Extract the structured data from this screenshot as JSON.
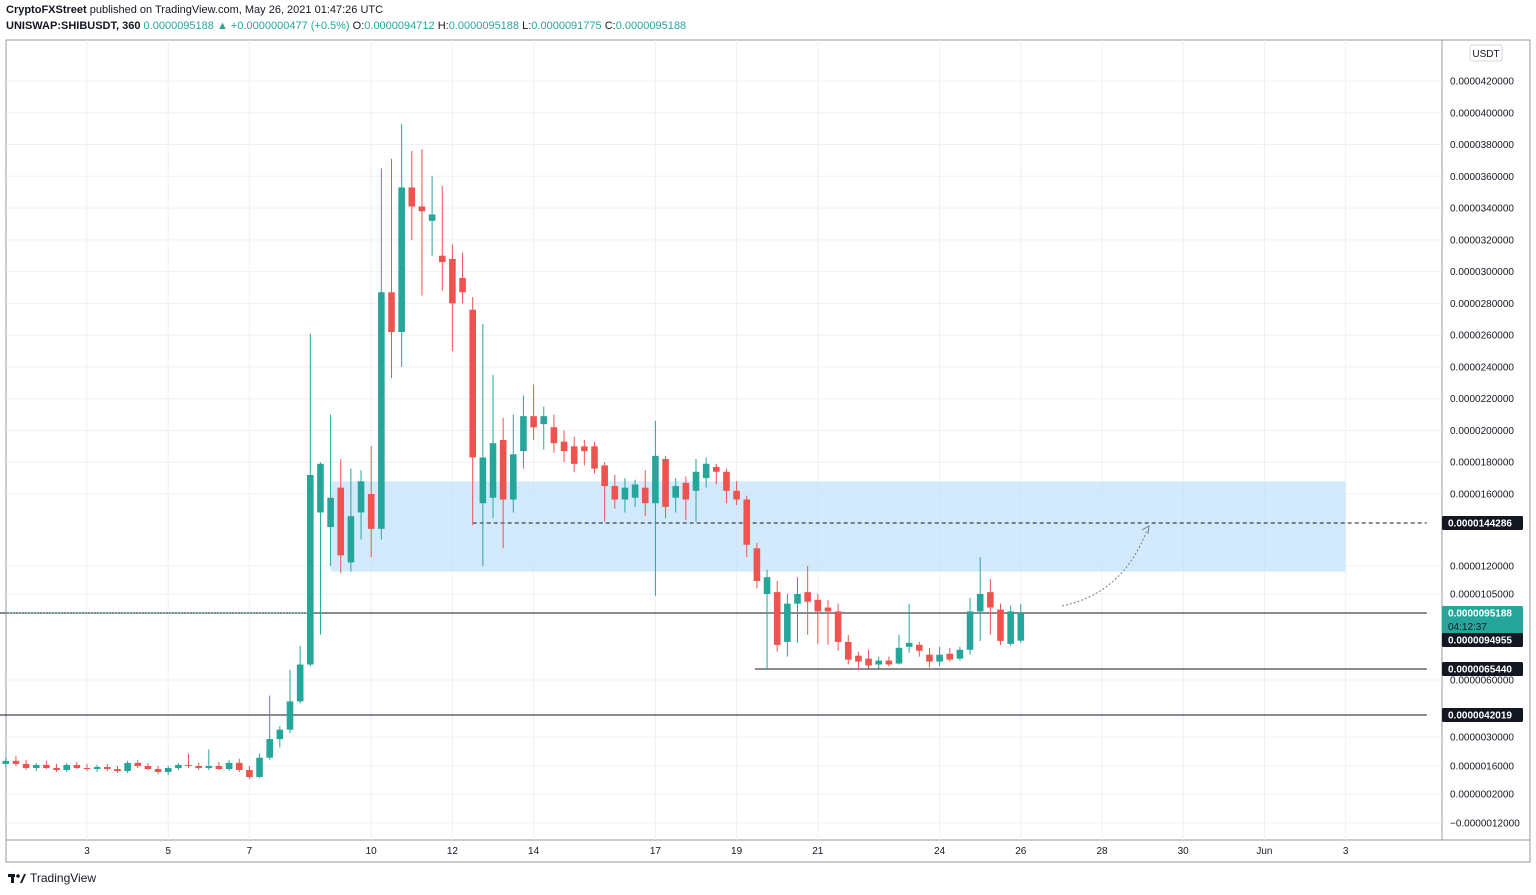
{
  "header": {
    "author": "CryptoFXStreet",
    "published": "published on TradingView.com, May 26, 2021 01:47:26 UTC",
    "symbol": "UNISWAP:SHIBUSDT, 360",
    "last": "0.0000095188",
    "change": "+0.0000000477 (+0.5%)",
    "o_label": "O:",
    "o": "0.0000094712",
    "h_label": "H:",
    "h": "0.0000095188",
    "l_label": "L:",
    "l": "0.0000091775",
    "c_label": "C:",
    "c": "0.0000095188"
  },
  "footer": {
    "brand": "TradingView"
  },
  "colors": {
    "up": "#26a69a",
    "down": "#ef5350",
    "zone": "#bbdefb",
    "grid": "#eef0f3"
  },
  "chart_data": {
    "type": "candlestick",
    "currency": "USDT",
    "y_ticks": [
      {
        "v": 4.2e-05,
        "label": "0.0000420000"
      },
      {
        "v": 4e-05,
        "label": "0.0000400000"
      },
      {
        "v": 3.8e-05,
        "label": "0.0000380000"
      },
      {
        "v": 3.6e-05,
        "label": "0.0000360000"
      },
      {
        "v": 3.4e-05,
        "label": "0.0000340000"
      },
      {
        "v": 3.2e-05,
        "label": "0.0000320000"
      },
      {
        "v": 3e-05,
        "label": "0.0000300000"
      },
      {
        "v": 2.8e-05,
        "label": "0.0000280000"
      },
      {
        "v": 2.6e-05,
        "label": "0.0000260000"
      },
      {
        "v": 2.4e-05,
        "label": "0.0000240000"
      },
      {
        "v": 2.2e-05,
        "label": "0.0000220000"
      },
      {
        "v": 2e-05,
        "label": "0.0000200000"
      },
      {
        "v": 1.8e-05,
        "label": "0.0000180000"
      },
      {
        "v": 1.6e-05,
        "label": "0.0000160000"
      },
      {
        "v": 1.2e-05,
        "label": "0.0000120000"
      },
      {
        "v": 1.05e-05,
        "label": "0.0000105000"
      },
      {
        "v": 6e-06,
        "label": "0.0000060000"
      },
      {
        "v": 3e-06,
        "label": "0.0000030000"
      },
      {
        "v": 1.6e-06,
        "label": "0.0000016000"
      },
      {
        "v": 2e-07,
        "label": "0.0000002000"
      },
      {
        "v": -1.2e-06,
        "label": "−0.0000012000"
      }
    ],
    "x_ticks": [
      {
        "day": 3,
        "label": "3"
      },
      {
        "day": 5,
        "label": "5"
      },
      {
        "day": 7,
        "label": "7"
      },
      {
        "day": 10,
        "label": "10"
      },
      {
        "day": 12,
        "label": "12"
      },
      {
        "day": 14,
        "label": "14"
      },
      {
        "day": 17,
        "label": "17"
      },
      {
        "day": 19,
        "label": "19"
      },
      {
        "day": 21,
        "label": "21"
      },
      {
        "day": 24,
        "label": "24"
      },
      {
        "day": 26,
        "label": "26"
      },
      {
        "day": 28,
        "label": "28"
      },
      {
        "day": 30,
        "label": "30"
      },
      {
        "day": 32,
        "label": "Jun"
      },
      {
        "day": 34,
        "label": "3"
      }
    ],
    "price_tags": [
      {
        "v": 1.44286e-05,
        "label": "0.0000144286",
        "bg": "#131722"
      },
      {
        "v": 9.5188e-06,
        "label": "0.0000095188",
        "bg": "#26a69a",
        "sub": "04:12:37"
      },
      {
        "v": 9.4955e-06,
        "label": "0.0000094955",
        "bg": "#131722"
      },
      {
        "v": 6.544e-06,
        "label": "0.0000065440",
        "bg": "#131722"
      },
      {
        "v": 4.2019e-06,
        "label": "0.0000042019",
        "bg": "#131722"
      }
    ],
    "zone": {
      "top": 1.68e-05,
      "bottom": 1.17e-05,
      "day_start": 9.0,
      "day_end": 34.0
    },
    "levels": [
      {
        "v": 1.44286e-05,
        "day_start": 12.5,
        "day_end": 36.0,
        "style": "dashed"
      },
      {
        "v": 9.5188e-06,
        "day_start": 0.8,
        "day_end": 36.0,
        "style": "solid"
      },
      {
        "v": 6.544e-06,
        "day_start": 19.45,
        "day_end": 36.0,
        "style": "solid"
      },
      {
        "v": 4.2019e-06,
        "day_start": 0.8,
        "day_end": 36.0,
        "style": "solid"
      }
    ],
    "candles": [
      {
        "d": 1.0,
        "o": 1.7e-06,
        "h": 2e-06,
        "l": 1.55e-06,
        "c": 1.85e-06
      },
      {
        "d": 1.25,
        "o": 1.85e-06,
        "h": 2.1e-06,
        "l": 1.6e-06,
        "c": 1.7e-06
      },
      {
        "d": 1.5,
        "o": 1.7e-06,
        "h": 1.9e-06,
        "l": 1.4e-06,
        "c": 1.5e-06
      },
      {
        "d": 1.75,
        "o": 1.5e-06,
        "h": 1.75e-06,
        "l": 1.35e-06,
        "c": 1.65e-06
      },
      {
        "d": 2.0,
        "o": 1.65e-06,
        "h": 1.85e-06,
        "l": 1.45e-06,
        "c": 1.5e-06
      },
      {
        "d": 2.25,
        "o": 1.5e-06,
        "h": 1.7e-06,
        "l": 1.3e-06,
        "c": 1.4e-06
      },
      {
        "d": 2.5,
        "o": 1.4e-06,
        "h": 1.75e-06,
        "l": 1.3e-06,
        "c": 1.65e-06
      },
      {
        "d": 2.75,
        "o": 1.65e-06,
        "h": 1.8e-06,
        "l": 1.45e-06,
        "c": 1.5e-06
      },
      {
        "d": 3.0,
        "o": 1.5e-06,
        "h": 1.7e-06,
        "l": 1.35e-06,
        "c": 1.45e-06
      },
      {
        "d": 3.25,
        "o": 1.45e-06,
        "h": 1.65e-06,
        "l": 1.3e-06,
        "c": 1.55e-06
      },
      {
        "d": 3.5,
        "o": 1.55e-06,
        "h": 1.7e-06,
        "l": 1.35e-06,
        "c": 1.45e-06
      },
      {
        "d": 3.75,
        "o": 1.45e-06,
        "h": 1.6e-06,
        "l": 1.25e-06,
        "c": 1.35e-06
      },
      {
        "d": 4.0,
        "o": 1.35e-06,
        "h": 1.85e-06,
        "l": 1.25e-06,
        "c": 1.75e-06
      },
      {
        "d": 4.25,
        "o": 1.75e-06,
        "h": 1.9e-06,
        "l": 1.5e-06,
        "c": 1.6e-06
      },
      {
        "d": 4.5,
        "o": 1.6e-06,
        "h": 1.75e-06,
        "l": 1.4e-06,
        "c": 1.45e-06
      },
      {
        "d": 4.75,
        "o": 1.45e-06,
        "h": 1.6e-06,
        "l": 1.2e-06,
        "c": 1.3e-06
      },
      {
        "d": 5.0,
        "o": 1.3e-06,
        "h": 1.6e-06,
        "l": 1.15e-06,
        "c": 1.5e-06
      },
      {
        "d": 5.25,
        "o": 1.5e-06,
        "h": 1.75e-06,
        "l": 1.4e-06,
        "c": 1.65e-06
      },
      {
        "d": 5.5,
        "o": 1.65e-06,
        "h": 2.2e-06,
        "l": 1.5e-06,
        "c": 1.6e-06
      },
      {
        "d": 5.75,
        "o": 1.6e-06,
        "h": 1.75e-06,
        "l": 1.4e-06,
        "c": 1.5e-06
      },
      {
        "d": 6.0,
        "o": 1.5e-06,
        "h": 2.4e-06,
        "l": 1.4e-06,
        "c": 1.6e-06
      },
      {
        "d": 6.25,
        "o": 1.6e-06,
        "h": 1.8e-06,
        "l": 1.4e-06,
        "c": 1.45e-06
      },
      {
        "d": 6.5,
        "o": 1.45e-06,
        "h": 1.9e-06,
        "l": 1.35e-06,
        "c": 1.75e-06
      },
      {
        "d": 6.75,
        "o": 1.75e-06,
        "h": 1.95e-06,
        "l": 1.3e-06,
        "c": 1.4e-06
      },
      {
        "d": 7.0,
        "o": 1.4e-06,
        "h": 1.6e-06,
        "l": 9.5e-07,
        "c": 1.05e-06
      },
      {
        "d": 7.25,
        "o": 1.05e-06,
        "h": 2.2e-06,
        "l": 1e-06,
        "c": 2e-06
      },
      {
        "d": 7.5,
        "o": 2e-06,
        "h": 5.2e-06,
        "l": 1.9e-06,
        "c": 2.9e-06
      },
      {
        "d": 7.75,
        "o": 2.9e-06,
        "h": 3.6e-06,
        "l": 2.5e-06,
        "c": 3.4e-06
      },
      {
        "d": 8.0,
        "o": 3.4e-06,
        "h": 6.5e-06,
        "l": 3.2e-06,
        "c": 4.9e-06
      },
      {
        "d": 8.25,
        "o": 4.9e-06,
        "h": 8.9e-06,
        "l": 4.8e-06,
        "c": 7e-06
      },
      {
        "d": 8.5,
        "o": 7e-06,
        "h": 2.61e-05,
        "l": 6.8e-06,
        "c": 1.72e-05
      },
      {
        "d": 8.75,
        "o": 1.5e-05,
        "h": 1.8e-05,
        "l": 9.5e-06,
        "c": 1.79e-05
      },
      {
        "d": 9.0,
        "o": 1.42e-05,
        "h": 2.1e-05,
        "l": 1.2e-05,
        "c": 1.58e-05
      },
      {
        "d": 9.25,
        "o": 1.64e-05,
        "h": 1.82e-05,
        "l": 1.16e-05,
        "c": 1.26e-05
      },
      {
        "d": 9.5,
        "o": 1.22e-05,
        "h": 1.76e-05,
        "l": 1.17e-05,
        "c": 1.48e-05
      },
      {
        "d": 9.75,
        "o": 1.5e-05,
        "h": 1.75e-05,
        "l": 1.35e-05,
        "c": 1.68e-05
      },
      {
        "d": 10.0,
        "o": 1.6e-05,
        "h": 1.9e-05,
        "l": 1.25e-05,
        "c": 1.41e-05
      },
      {
        "d": 10.25,
        "o": 1.41e-05,
        "h": 3.65e-05,
        "l": 1.35e-05,
        "c": 2.87e-05
      },
      {
        "d": 10.5,
        "o": 2.87e-05,
        "h": 3.71e-05,
        "l": 2.33e-05,
        "c": 2.62e-05
      },
      {
        "d": 10.75,
        "o": 2.62e-05,
        "h": 3.93e-05,
        "l": 2.4e-05,
        "c": 3.53e-05
      },
      {
        "d": 11.0,
        "o": 3.53e-05,
        "h": 3.76e-05,
        "l": 3.2e-05,
        "c": 3.41e-05
      },
      {
        "d": 11.25,
        "o": 3.41e-05,
        "h": 3.77e-05,
        "l": 2.85e-05,
        "c": 3.38e-05
      },
      {
        "d": 11.5,
        "o": 3.32e-05,
        "h": 3.6e-05,
        "l": 3.1e-05,
        "c": 3.36e-05
      },
      {
        "d": 11.75,
        "o": 3.1e-05,
        "h": 3.54e-05,
        "l": 2.88e-05,
        "c": 3.06e-05
      },
      {
        "d": 12.0,
        "o": 3.08e-05,
        "h": 3.17e-05,
        "l": 2.5e-05,
        "c": 2.8e-05
      },
      {
        "d": 12.25,
        "o": 2.96e-05,
        "h": 3.12e-05,
        "l": 2.8e-05,
        "c": 2.87e-05
      },
      {
        "d": 12.5,
        "o": 2.76e-05,
        "h": 2.84e-05,
        "l": 1.43e-05,
        "c": 1.83e-05
      },
      {
        "d": 12.75,
        "o": 1.55e-05,
        "h": 2.67e-05,
        "l": 1.2e-05,
        "c": 1.83e-05
      },
      {
        "d": 13.0,
        "o": 1.58e-05,
        "h": 2.35e-05,
        "l": 1.47e-05,
        "c": 1.92e-05
      },
      {
        "d": 13.25,
        "o": 1.94e-05,
        "h": 2.08e-05,
        "l": 1.3e-05,
        "c": 1.57e-05
      },
      {
        "d": 13.5,
        "o": 1.57e-05,
        "h": 2.1e-05,
        "l": 1.5e-05,
        "c": 1.85e-05
      },
      {
        "d": 13.75,
        "o": 1.87e-05,
        "h": 2.22e-05,
        "l": 1.76e-05,
        "c": 2.09e-05
      },
      {
        "d": 14.0,
        "o": 2.09e-05,
        "h": 2.29e-05,
        "l": 1.94e-05,
        "c": 2.02e-05
      },
      {
        "d": 14.25,
        "o": 2.04e-05,
        "h": 2.15e-05,
        "l": 1.88e-05,
        "c": 2.09e-05
      },
      {
        "d": 14.5,
        "o": 2.02e-05,
        "h": 2.1e-05,
        "l": 1.86e-05,
        "c": 1.92e-05
      },
      {
        "d": 14.75,
        "o": 1.93e-05,
        "h": 2e-05,
        "l": 1.8e-05,
        "c": 1.87e-05
      },
      {
        "d": 15.0,
        "o": 1.9e-05,
        "h": 1.96e-05,
        "l": 1.74e-05,
        "c": 1.79e-05
      },
      {
        "d": 15.25,
        "o": 1.9e-05,
        "h": 1.94e-05,
        "l": 1.78e-05,
        "c": 1.87e-05
      },
      {
        "d": 15.5,
        "o": 1.9e-05,
        "h": 1.93e-05,
        "l": 1.73e-05,
        "c": 1.76e-05
      },
      {
        "d": 15.75,
        "o": 1.78e-05,
        "h": 1.8e-05,
        "l": 1.45e-05,
        "c": 1.65e-05
      },
      {
        "d": 16.0,
        "o": 1.65e-05,
        "h": 1.72e-05,
        "l": 1.52e-05,
        "c": 1.57e-05
      },
      {
        "d": 16.25,
        "o": 1.57e-05,
        "h": 1.7e-05,
        "l": 1.5e-05,
        "c": 1.64e-05
      },
      {
        "d": 16.5,
        "o": 1.58e-05,
        "h": 1.69e-05,
        "l": 1.53e-05,
        "c": 1.66e-05
      },
      {
        "d": 16.75,
        "o": 1.64e-05,
        "h": 1.75e-05,
        "l": 1.48e-05,
        "c": 1.55e-05
      },
      {
        "d": 17.0,
        "o": 1.55e-05,
        "h": 2.06e-05,
        "l": 1.04e-05,
        "c": 1.84e-05
      },
      {
        "d": 17.25,
        "o": 1.82e-05,
        "h": 1.84e-05,
        "l": 1.47e-05,
        "c": 1.53e-05
      },
      {
        "d": 17.5,
        "o": 1.58e-05,
        "h": 1.7e-05,
        "l": 1.5e-05,
        "c": 1.65e-05
      },
      {
        "d": 17.75,
        "o": 1.67e-05,
        "h": 1.71e-05,
        "l": 1.46e-05,
        "c": 1.57e-05
      },
      {
        "d": 18.0,
        "o": 1.62e-05,
        "h": 1.82e-05,
        "l": 1.45e-05,
        "c": 1.74e-05
      },
      {
        "d": 18.25,
        "o": 1.7e-05,
        "h": 1.83e-05,
        "l": 1.64e-05,
        "c": 1.79e-05
      },
      {
        "d": 18.5,
        "o": 1.77e-05,
        "h": 1.79e-05,
        "l": 1.66e-05,
        "c": 1.74e-05
      },
      {
        "d": 18.75,
        "o": 1.74e-05,
        "h": 1.76e-05,
        "l": 1.55e-05,
        "c": 1.62e-05
      },
      {
        "d": 19.0,
        "o": 1.62e-05,
        "h": 1.68e-05,
        "l": 1.54e-05,
        "c": 1.57e-05
      },
      {
        "d": 19.25,
        "o": 1.57e-05,
        "h": 1.59e-05,
        "l": 1.25e-05,
        "c": 1.32e-05
      },
      {
        "d": 19.5,
        "o": 1.3e-05,
        "h": 1.33e-05,
        "l": 1.08e-05,
        "c": 1.12e-05
      },
      {
        "d": 19.75,
        "o": 1.05e-05,
        "h": 1.18e-05,
        "l": 6.5e-06,
        "c": 1.14e-05
      },
      {
        "d": 20.0,
        "o": 1.06e-05,
        "h": 1.12e-05,
        "l": 8.3e-06,
        "c": 9e-06
      },
      {
        "d": 20.25,
        "o": 9.3e-06,
        "h": 1.05e-05,
        "l": 7.8e-06,
        "c": 1e-05
      },
      {
        "d": 20.5,
        "o": 1e-05,
        "h": 1.14e-05,
        "l": 9.2e-06,
        "c": 1.05e-05
      },
      {
        "d": 20.75,
        "o": 1.06e-05,
        "h": 1.2e-05,
        "l": 9.5e-06,
        "c": 1.01e-05
      },
      {
        "d": 21.0,
        "o": 1.02e-05,
        "h": 1.05e-05,
        "l": 9.1e-06,
        "c": 9.6e-06
      },
      {
        "d": 21.25,
        "o": 9.8e-06,
        "h": 1.02e-05,
        "l": 9e-06,
        "c": 9.6e-06
      },
      {
        "d": 21.5,
        "o": 9.6e-06,
        "h": 1e-05,
        "l": 8.4e-06,
        "c": 9.3e-06
      },
      {
        "d": 21.75,
        "o": 9.3e-06,
        "h": 9.5e-06,
        "l": 7e-06,
        "c": 7.5e-06
      },
      {
        "d": 22.0,
        "o": 7.9e-06,
        "h": 8.3e-06,
        "l": 6.5e-06,
        "c": 7.3e-06
      },
      {
        "d": 22.25,
        "o": 7.6e-06,
        "h": 8.5e-06,
        "l": 6.6e-06,
        "c": 6.9e-06
      },
      {
        "d": 22.5,
        "o": 7e-06,
        "h": 7.8e-06,
        "l": 6.6e-06,
        "c": 7.4e-06
      },
      {
        "d": 22.75,
        "o": 7.4e-06,
        "h": 7.8e-06,
        "l": 6.8e-06,
        "c": 7e-06
      },
      {
        "d": 23.0,
        "o": 7.1e-06,
        "h": 9.5e-06,
        "l": 7e-06,
        "c": 8.7e-06
      },
      {
        "d": 23.25,
        "o": 8.8e-06,
        "h": 1e-05,
        "l": 8.2e-06,
        "c": 9.2e-06
      },
      {
        "d": 23.5,
        "o": 9e-06,
        "h": 9.3e-06,
        "l": 7.8e-06,
        "c": 8.4e-06
      },
      {
        "d": 23.75,
        "o": 8e-06,
        "h": 8.7e-06,
        "l": 6.7e-06,
        "c": 7.3e-06
      },
      {
        "d": 24.0,
        "o": 7.3e-06,
        "h": 8.8e-06,
        "l": 6.8e-06,
        "c": 8e-06
      },
      {
        "d": 24.25,
        "o": 8.1e-06,
        "h": 8.7e-06,
        "l": 7.3e-06,
        "c": 7.5e-06
      },
      {
        "d": 24.5,
        "o": 7.6e-06,
        "h": 8.8e-06,
        "l": 7.4e-06,
        "c": 8.5e-06
      },
      {
        "d": 24.75,
        "o": 8.5e-06,
        "h": 1.03e-05,
        "l": 8e-06,
        "c": 9.6e-06
      },
      {
        "d": 25.0,
        "o": 9.6e-06,
        "h": 1.25e-05,
        "l": 9.4e-06,
        "c": 1.05e-05
      },
      {
        "d": 25.25,
        "o": 1.06e-05,
        "h": 1.13e-05,
        "l": 9.5e-06,
        "c": 9.8e-06
      },
      {
        "d": 25.5,
        "o": 9.7e-06,
        "h": 1e-05,
        "l": 9e-06,
        "c": 9.4e-06
      },
      {
        "d": 25.75,
        "o": 9.1e-06,
        "h": 9.9e-06,
        "l": 8.9e-06,
        "c": 9.6e-06
      },
      {
        "d": 26.0,
        "o": 9.43e-06,
        "h": 1e-05,
        "l": 9.2e-06,
        "c": 9.52e-06
      }
    ]
  }
}
